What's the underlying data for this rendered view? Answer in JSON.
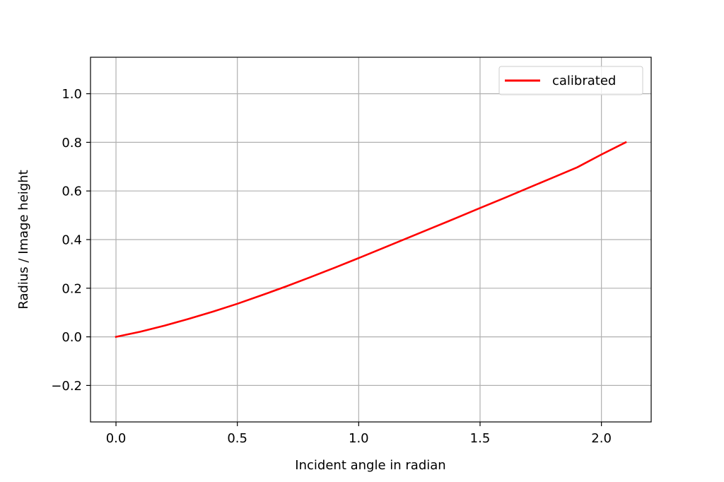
{
  "chart_data": {
    "type": "line",
    "xlabel": "Incident angle in radian",
    "ylabel": "Radius / Image height",
    "xlim": [
      -0.105,
      2.205
    ],
    "ylim": [
      -0.35,
      1.15
    ],
    "xticks": [
      0.0,
      0.5,
      1.0,
      1.5,
      2.0
    ],
    "xtick_labels": [
      "0.0",
      "0.5",
      "1.0",
      "1.5",
      "2.0"
    ],
    "yticks": [
      -0.2,
      0.0,
      0.2,
      0.4,
      0.6,
      0.8,
      1.0
    ],
    "ytick_labels": [
      "−0.2",
      "0.0",
      "0.2",
      "0.4",
      "0.6",
      "0.8",
      "1.0"
    ],
    "grid": true,
    "legend_position": "top-right",
    "series": [
      {
        "name": "calibrated",
        "color": "#ff0000",
        "x": [
          0.0,
          0.1,
          0.2,
          0.3,
          0.4,
          0.5,
          0.6,
          0.7,
          0.8,
          0.9,
          1.0,
          1.1,
          1.2,
          1.3,
          1.4,
          1.5,
          1.6,
          1.7,
          1.8,
          1.9,
          2.0,
          2.1
        ],
        "y": [
          0.0,
          0.021,
          0.046,
          0.074,
          0.104,
          0.136,
          0.171,
          0.207,
          0.245,
          0.284,
          0.324,
          0.365,
          0.406,
          0.447,
          0.488,
          0.53,
          0.571,
          0.613,
          0.655,
          0.697,
          0.75,
          0.8
        ]
      }
    ]
  }
}
